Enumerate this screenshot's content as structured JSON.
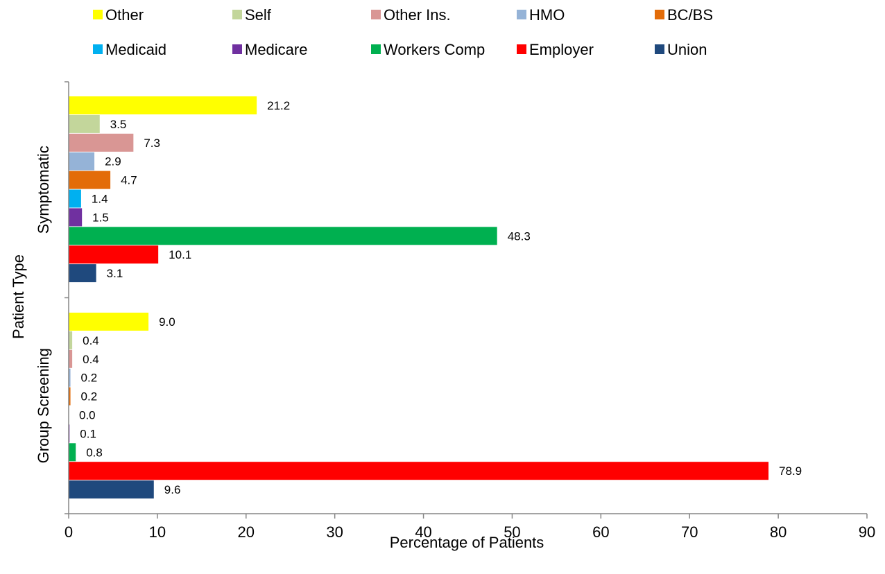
{
  "chart_data": {
    "type": "bar",
    "orientation": "horizontal",
    "title": "",
    "xlabel": "Percentage of Patients",
    "ylabel": "Patient Type",
    "xlim": [
      0,
      90
    ],
    "x_ticks": [
      "0",
      "10",
      "20",
      "30",
      "40",
      "50",
      "60",
      "70",
      "80",
      "90"
    ],
    "grid": false,
    "legend_position": "top",
    "categories": [
      "Symptomatic",
      "Group Screening"
    ],
    "series": [
      {
        "name": "Other",
        "color": "#FFFF00",
        "values": [
          21.2,
          9.0
        ],
        "labels": [
          "21.2",
          "9.0"
        ]
      },
      {
        "name": "Self",
        "color": "#C3D69B",
        "values": [
          3.5,
          0.4
        ],
        "labels": [
          "3.5",
          "0.4"
        ]
      },
      {
        "name": "Other Ins.",
        "color": "#D99694",
        "values": [
          7.3,
          0.4
        ],
        "labels": [
          "7.3",
          "0.4"
        ]
      },
      {
        "name": "HMO",
        "color": "#95B3D7",
        "values": [
          2.9,
          0.2
        ],
        "labels": [
          "2.9",
          "0.2"
        ]
      },
      {
        "name": "BC/BS",
        "color": "#E36C09",
        "values": [
          4.7,
          0.2
        ],
        "labels": [
          "4.7",
          "0.2"
        ]
      },
      {
        "name": "Medicaid",
        "color": "#00B0F0",
        "values": [
          1.4,
          0.0
        ],
        "labels": [
          "1.4",
          "0.0"
        ]
      },
      {
        "name": "Medicare",
        "color": "#7030A0",
        "values": [
          1.5,
          0.1
        ],
        "labels": [
          "1.5",
          "0.1"
        ]
      },
      {
        "name": "Workers Comp",
        "color": "#00B050",
        "values": [
          48.3,
          0.8
        ],
        "labels": [
          "48.3",
          "0.8"
        ]
      },
      {
        "name": "Employer",
        "color": "#FF0000",
        "values": [
          10.1,
          78.9
        ],
        "labels": [
          "10.1",
          "78.9"
        ]
      },
      {
        "name": "Union",
        "color": "#1F497D",
        "values": [
          3.1,
          9.6
        ],
        "labels": [
          "3.1",
          "9.6"
        ]
      }
    ]
  }
}
